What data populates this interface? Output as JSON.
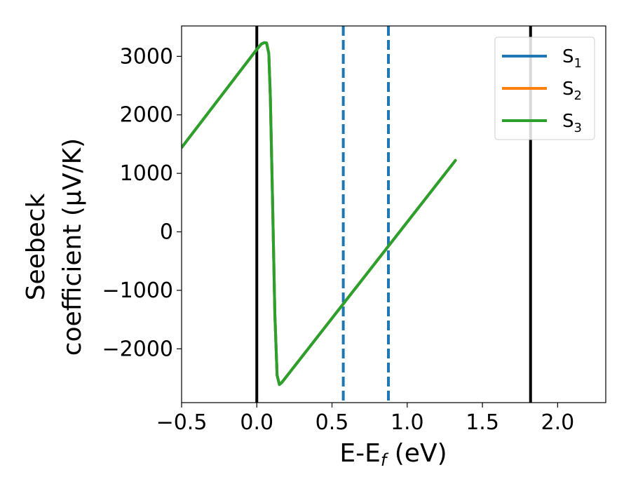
{
  "chart_data": {
    "type": "line",
    "xlabel": "E-E",
    "xlabel_sub": "f",
    "xlabel_unit": " (eV)",
    "ylabel_line1": "Seebeck",
    "ylabel_line2": "coefficient  (μV/K)",
    "xlim": [
      -0.5,
      2.32
    ],
    "ylim": [
      -2920,
      3520
    ],
    "x_ticks": [
      -0.5,
      0.0,
      0.5,
      1.0,
      1.5,
      2.0
    ],
    "x_tick_labels": [
      "−0.5",
      "0.0",
      "0.5",
      "1.0",
      "1.5",
      "2.0"
    ],
    "y_ticks": [
      -2000,
      -1000,
      0,
      1000,
      2000,
      3000
    ],
    "y_tick_labels": [
      "−2000",
      "−1000",
      "0",
      "1000",
      "2000",
      "3000"
    ],
    "grid": false,
    "legend_position": "top-right",
    "series": [
      {
        "name": "S",
        "sub": "1",
        "color": "#1f77b4",
        "x": [
          -0.5,
          0.0,
          0.03,
          0.05,
          0.065,
          0.08,
          0.09,
          0.105,
          0.12,
          0.135,
          0.15,
          0.165,
          1.32
        ],
        "y": [
          1440,
          3120,
          3210,
          3235,
          3230,
          3050,
          2300,
          500,
          -1400,
          -2450,
          -2610,
          -2580,
          1220
        ]
      },
      {
        "name": "S",
        "sub": "2",
        "color": "#ff7f0e",
        "x": [
          -0.5,
          0.0,
          0.03,
          0.05,
          0.065,
          0.08,
          0.09,
          0.105,
          0.12,
          0.135,
          0.15,
          0.165,
          1.32
        ],
        "y": [
          1440,
          3120,
          3210,
          3235,
          3230,
          3050,
          2300,
          500,
          -1400,
          -2450,
          -2610,
          -2580,
          1220
        ]
      },
      {
        "name": "S",
        "sub": "3",
        "color": "#2ca02c",
        "x": [
          -0.5,
          0.0,
          0.03,
          0.05,
          0.065,
          0.08,
          0.09,
          0.105,
          0.12,
          0.135,
          0.15,
          0.165,
          1.32
        ],
        "y": [
          1440,
          3120,
          3210,
          3235,
          3230,
          3050,
          2300,
          500,
          -1400,
          -2450,
          -2610,
          -2580,
          1220
        ]
      }
    ],
    "vlines": [
      {
        "x": 0.0,
        "style": "solid",
        "color": "#000000"
      },
      {
        "x": 1.82,
        "style": "solid",
        "color": "#000000"
      },
      {
        "x": 0.575,
        "style": "dashed",
        "color": "#1f77b4"
      },
      {
        "x": 0.875,
        "style": "dashed",
        "color": "#1f77b4"
      }
    ]
  }
}
